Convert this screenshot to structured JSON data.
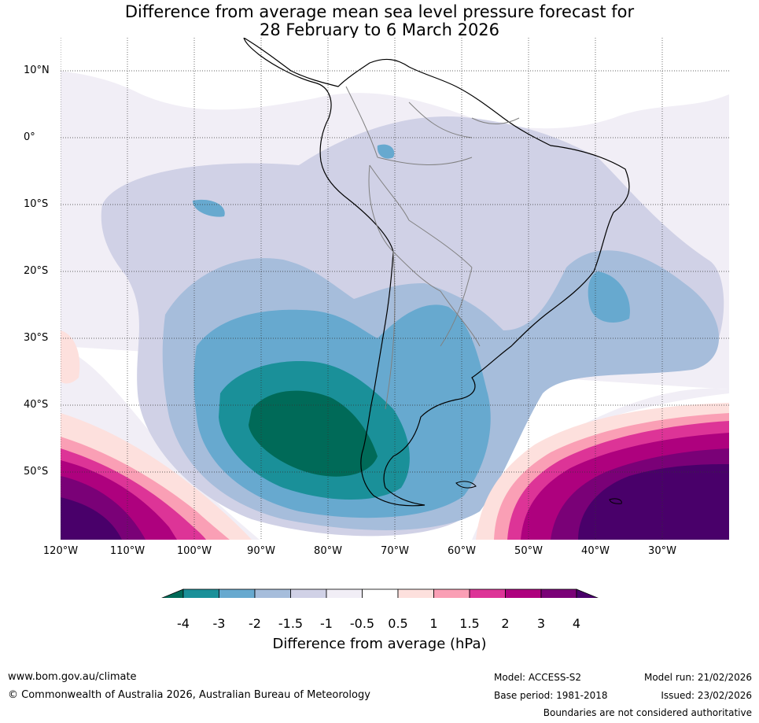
{
  "title": {
    "line1": "Difference from average mean sea level pressure forecast for",
    "line2": "28 February to 6 March 2026"
  },
  "map": {
    "latitudes": [
      "10°N",
      "0°",
      "10°S",
      "20°S",
      "30°S",
      "40°S",
      "50°S"
    ],
    "longitudes": [
      "120°W",
      "110°W",
      "100°W",
      "90°W",
      "80°W",
      "70°W",
      "60°W",
      "50°W",
      "40°W",
      "30°W"
    ]
  },
  "legend": {
    "title": "Difference from average (hPa)",
    "ticks": [
      "-4",
      "-3",
      "-2",
      "-1.5",
      "-1",
      "-0.5",
      "0.5",
      "1",
      "1.5",
      "2",
      "3",
      "4"
    ],
    "colors": {
      "below_min": "#006a58",
      "n4_n3": "#1a9099",
      "n3_n2": "#67a9cf",
      "n2_n15": "#a6bddb",
      "n15_n1": "#d0d1e6",
      "n1_n05": "#f1eef6",
      "n05_05": "#ffffff",
      "p05_1": "#fde0dd",
      "p1_15": "#fa9fb5",
      "p15_2": "#dd3497",
      "p2_3": "#ae017e",
      "p3_4": "#7a0177",
      "above_max": "#49006a"
    }
  },
  "footer": {
    "website": "www.bom.gov.au/climate",
    "copyright": "© Commonwealth of Australia 2026, Australian Bureau of Meteorology",
    "model": "Model: ACCESS-S2",
    "base_period": "Base period: 1981-2018",
    "model_run": "Model run: 21/02/2026",
    "issued": "Issued: 23/02/2026",
    "disclaimer": "Boundaries are not considered authoritative"
  }
}
